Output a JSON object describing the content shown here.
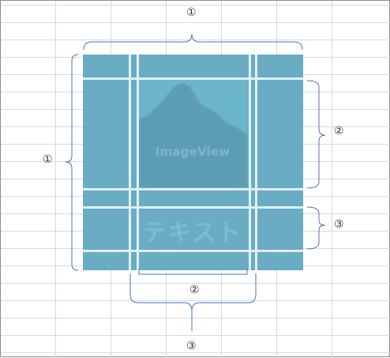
{
  "markers": {
    "top_col_1": "①",
    "left_row_1": "①",
    "right_row_2": "②",
    "right_row_3": "③",
    "bottom_col_2": "②",
    "bottom_col_3": "③"
  },
  "image_view": {
    "caption": "ImageView",
    "icon": "mountain-landscape-icon"
  },
  "text_view": {
    "text": "テキスト"
  },
  "colors": {
    "panel": "#6aacc4",
    "image_area": "#6cb6ca",
    "mountain": "#5d9db4",
    "guide_lines": "#dff0f5",
    "brace": "#4a72c0",
    "grid": "#d9d9d9"
  }
}
